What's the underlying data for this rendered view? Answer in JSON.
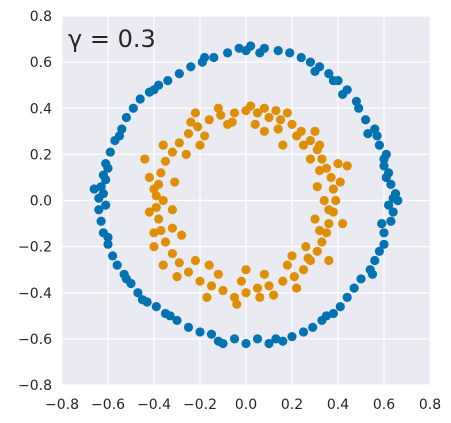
{
  "chart_data": {
    "type": "scatter",
    "title": "",
    "xlabel": "",
    "ylabel": "",
    "xlim": [
      -0.8,
      0.8
    ],
    "ylim": [
      -0.8,
      0.8
    ],
    "xticks": [
      -0.8,
      -0.6,
      -0.4,
      -0.2,
      0.0,
      0.2,
      0.4,
      0.6,
      0.8
    ],
    "yticks": [
      -0.8,
      -0.6,
      -0.4,
      -0.2,
      0.0,
      0.2,
      0.4,
      0.6,
      0.8
    ],
    "xtick_labels": [
      "−0.8",
      "−0.6",
      "−0.4",
      "−0.2",
      "0.0",
      "0.2",
      "0.4",
      "0.6",
      "0.8"
    ],
    "ytick_labels": [
      "−0.8",
      "−0.6",
      "−0.4",
      "−0.2",
      "0.0",
      "0.2",
      "0.4",
      "0.6",
      "0.8"
    ],
    "grid": true,
    "background_color": "#eaeaf2",
    "annotation": "γ = 0.3",
    "series": [
      {
        "color": "#0173b2",
        "points": [
          [
            0.64,
            0.01
          ],
          [
            0.65,
            0.03
          ],
          [
            0.63,
            0.07
          ],
          [
            0.64,
            -0.05
          ],
          [
            0.63,
            -0.09
          ],
          [
            0.62,
            0.12
          ],
          [
            0.6,
            0.18
          ],
          [
            0.61,
            0.2
          ],
          [
            0.6,
            -0.14
          ],
          [
            0.6,
            -0.19
          ],
          [
            0.58,
            0.24
          ],
          [
            0.57,
            0.28
          ],
          [
            0.56,
            0.31
          ],
          [
            0.58,
            -0.22
          ],
          [
            0.56,
            -0.26
          ],
          [
            0.54,
            -0.3
          ],
          [
            0.52,
            0.35
          ],
          [
            0.49,
            0.4
          ],
          [
            0.48,
            0.43
          ],
          [
            0.5,
            -0.34
          ],
          [
            0.47,
            -0.38
          ],
          [
            0.44,
            -0.42
          ],
          [
            0.44,
            0.48
          ],
          [
            0.4,
            0.52
          ],
          [
            0.36,
            0.55
          ],
          [
            0.41,
            -0.46
          ],
          [
            0.38,
            -0.49
          ],
          [
            0.33,
            -0.52
          ],
          [
            0.32,
            0.58
          ],
          [
            0.28,
            0.6
          ],
          [
            0.24,
            0.62
          ],
          [
            0.29,
            -0.55
          ],
          [
            0.25,
            -0.57
          ],
          [
            0.2,
            -0.59
          ],
          [
            0.19,
            0.64
          ],
          [
            0.14,
            0.65
          ],
          [
            0.08,
            0.66
          ],
          [
            0.16,
            -0.61
          ],
          [
            0.1,
            -0.62
          ],
          [
            0.05,
            -0.6
          ],
          [
            0.02,
            0.67
          ],
          [
            -0.03,
            0.66
          ],
          [
            -0.08,
            0.64
          ],
          [
            0.0,
            -0.62
          ],
          [
            -0.05,
            -0.6
          ],
          [
            -0.1,
            -0.62
          ],
          [
            -0.14,
            0.62
          ],
          [
            -0.19,
            0.6
          ],
          [
            -0.24,
            0.58
          ],
          [
            -0.15,
            -0.58
          ],
          [
            -0.2,
            -0.57
          ],
          [
            -0.25,
            -0.55
          ],
          [
            -0.29,
            0.55
          ],
          [
            -0.34,
            0.52
          ],
          [
            -0.38,
            0.5
          ],
          [
            -0.3,
            -0.52
          ],
          [
            -0.35,
            -0.49
          ],
          [
            -0.39,
            -0.46
          ],
          [
            -0.42,
            0.47
          ],
          [
            -0.46,
            0.44
          ],
          [
            -0.49,
            0.4
          ],
          [
            -0.43,
            -0.44
          ],
          [
            -0.47,
            -0.4
          ],
          [
            -0.5,
            -0.36
          ],
          [
            -0.52,
            0.36
          ],
          [
            -0.54,
            0.31
          ],
          [
            -0.57,
            0.26
          ],
          [
            -0.53,
            -0.32
          ],
          [
            -0.56,
            -0.28
          ],
          [
            -0.58,
            -0.24
          ],
          [
            -0.59,
            0.21
          ],
          [
            -0.61,
            0.16
          ],
          [
            -0.62,
            0.11
          ],
          [
            -0.6,
            -0.19
          ],
          [
            -0.62,
            -0.14
          ],
          [
            -0.63,
            -0.09
          ],
          [
            -0.63,
            0.06
          ],
          [
            -0.64,
            0.01
          ],
          [
            -0.64,
            -0.04
          ],
          [
            -0.62,
            0.03
          ],
          [
            -0.61,
            -0.02
          ],
          [
            -0.61,
            0.09
          ],
          [
            0.62,
            -0.02
          ],
          [
            0.61,
            0.1
          ],
          [
            0.59,
            -0.1
          ],
          [
            0.55,
            -0.32
          ],
          [
            0.53,
            0.29
          ],
          [
            0.42,
            0.46
          ],
          [
            0.35,
            -0.5
          ],
          [
            0.3,
            0.56
          ],
          [
            0.13,
            -0.6
          ],
          [
            0.06,
            0.64
          ],
          [
            -0.12,
            -0.61
          ],
          [
            -0.18,
            0.62
          ],
          [
            -0.33,
            -0.5
          ],
          [
            -0.4,
            0.48
          ],
          [
            -0.52,
            -0.34
          ],
          [
            -0.55,
            0.28
          ],
          [
            -0.6,
            -0.16
          ],
          [
            -0.6,
            0.14
          ],
          [
            0.66,
            0.0
          ],
          [
            -0.66,
            0.05
          ],
          [
            0.6,
            0.15
          ],
          [
            0.38,
            0.52
          ],
          [
            -0.45,
            -0.43
          ],
          [
            0.0,
            0.65
          ]
        ]
      },
      {
        "color": "#de8f05",
        "points": [
          [
            0.0,
            0.39
          ],
          [
            0.05,
            0.38
          ],
          [
            0.1,
            0.36
          ],
          [
            0.15,
            0.35
          ],
          [
            0.2,
            0.33
          ],
          [
            0.24,
            0.3
          ],
          [
            0.28,
            0.26
          ],
          [
            0.31,
            0.22
          ],
          [
            0.33,
            0.18
          ],
          [
            0.35,
            0.14
          ],
          [
            0.37,
            0.1
          ],
          [
            0.38,
            0.05
          ],
          [
            0.39,
            0.0
          ],
          [
            0.38,
            -0.05
          ],
          [
            0.36,
            -0.1
          ],
          [
            0.35,
            -0.14
          ],
          [
            0.33,
            -0.18
          ],
          [
            0.31,
            -0.22
          ],
          [
            0.28,
            -0.26
          ],
          [
            0.25,
            -0.3
          ],
          [
            0.21,
            -0.33
          ],
          [
            0.16,
            -0.35
          ],
          [
            0.1,
            -0.37
          ],
          [
            0.05,
            -0.38
          ],
          [
            0.0,
            -0.4
          ],
          [
            -0.05,
            -0.42
          ],
          [
            -0.1,
            -0.39
          ],
          [
            -0.15,
            -0.37
          ],
          [
            -0.2,
            -0.35
          ],
          [
            -0.25,
            -0.31
          ],
          [
            -0.29,
            -0.27
          ],
          [
            -0.32,
            -0.23
          ],
          [
            -0.35,
            -0.18
          ],
          [
            -0.37,
            -0.13
          ],
          [
            -0.38,
            -0.08
          ],
          [
            -0.39,
            -0.03
          ],
          [
            -0.39,
            0.02
          ],
          [
            -0.38,
            0.07
          ],
          [
            -0.37,
            0.12
          ],
          [
            -0.35,
            0.17
          ],
          [
            -0.32,
            0.21
          ],
          [
            -0.29,
            0.25
          ],
          [
            -0.25,
            0.29
          ],
          [
            -0.21,
            0.32
          ],
          [
            -0.16,
            0.35
          ],
          [
            -0.11,
            0.37
          ],
          [
            -0.05,
            0.38
          ],
          [
            0.02,
            0.41
          ],
          [
            0.08,
            0.4
          ],
          [
            0.13,
            0.39
          ],
          [
            0.22,
            0.28
          ],
          [
            0.28,
            0.18
          ],
          [
            0.31,
            0.06
          ],
          [
            0.3,
            -0.08
          ],
          [
            0.26,
            -0.2
          ],
          [
            0.18,
            -0.28
          ],
          [
            0.08,
            -0.32
          ],
          [
            -0.02,
            -0.35
          ],
          [
            -0.12,
            -0.32
          ],
          [
            -0.22,
            -0.26
          ],
          [
            -0.28,
            -0.15
          ],
          [
            -0.32,
            -0.04
          ],
          [
            -0.31,
            0.08
          ],
          [
            -0.26,
            0.2
          ],
          [
            -0.18,
            0.28
          ],
          [
            -0.08,
            0.33
          ],
          [
            0.04,
            0.33
          ],
          [
            0.14,
            0.31
          ],
          [
            0.25,
            0.24
          ],
          [
            0.32,
            0.13
          ],
          [
            0.34,
            0.0
          ],
          [
            0.32,
            -0.13
          ],
          [
            0.27,
            -0.25
          ],
          [
            0.12,
            -0.41
          ],
          [
            -0.04,
            -0.45
          ],
          [
            -0.17,
            -0.42
          ],
          [
            -0.3,
            -0.33
          ],
          [
            -0.4,
            -0.2
          ],
          [
            -0.42,
            -0.05
          ],
          [
            -0.42,
            0.1
          ],
          [
            -0.36,
            0.24
          ],
          [
            -0.24,
            0.34
          ],
          [
            -0.12,
            0.4
          ],
          [
            0.18,
            0.38
          ],
          [
            0.3,
            0.3
          ],
          [
            0.36,
            -0.26
          ],
          [
            -0.44,
            0.18
          ],
          [
            0.42,
            -0.1
          ],
          [
            0.44,
            0.15
          ],
          [
            -0.36,
            -0.28
          ],
          [
            0.06,
            -0.42
          ],
          [
            -0.06,
            0.34
          ],
          [
            0.22,
            -0.38
          ],
          [
            -0.22,
            0.38
          ],
          [
            0.41,
            0.08
          ],
          [
            -0.4,
            0.05
          ],
          [
            0.16,
            0.24
          ],
          [
            -0.16,
            -0.28
          ],
          [
            0.32,
            0.24
          ],
          [
            -0.32,
            -0.12
          ],
          [
            0.0,
            -0.3
          ],
          [
            0.2,
            -0.24
          ],
          [
            -0.2,
            0.24
          ],
          [
            0.36,
            -0.04
          ],
          [
            -0.36,
            0.0
          ],
          [
            0.08,
            0.3
          ],
          [
            0.4,
            0.16
          ],
          [
            -0.4,
            -0.14
          ]
        ]
      }
    ]
  }
}
